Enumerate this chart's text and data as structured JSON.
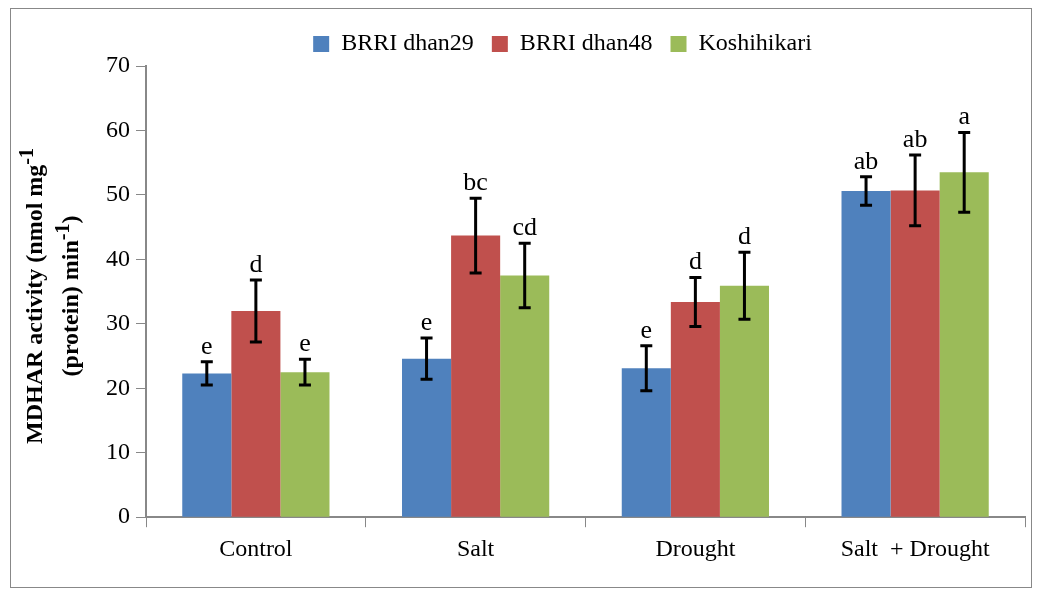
{
  "chart_data": {
    "type": "bar",
    "ylabel": "MDHAR activity (nmol mg$^{-1}$ (protein) min$^{-1}$)",
    "categories": [
      "Control",
      "Salt",
      "Drought",
      "Salt  + Drought"
    ],
    "series": [
      {
        "name": "BRRI dhan29",
        "color": "#4f81bd",
        "values": [
          22.3,
          24.6,
          23.1,
          50.6
        ],
        "errors": [
          1.8,
          3.2,
          3.5,
          2.2
        ]
      },
      {
        "name": "BRRI dhan48",
        "color": "#c0504d",
        "values": [
          32.0,
          43.7,
          33.4,
          50.7
        ],
        "errors": [
          4.8,
          5.8,
          3.8,
          5.5
        ]
      },
      {
        "name": "Koshihikari",
        "color": "#9bbb59",
        "values": [
          22.5,
          37.5,
          35.9,
          53.5
        ],
        "errors": [
          2.0,
          5.0,
          5.2,
          6.2
        ]
      }
    ],
    "ylim": [
      0,
      70
    ],
    "yticks": [
      0,
      10,
      20,
      30,
      40,
      50,
      60,
      70
    ],
    "grid": false,
    "legend": "top",
    "annotations": [
      "e",
      "d",
      "e",
      "e",
      "bc",
      "cd",
      "e",
      "d",
      "d",
      "ab",
      "ab",
      "a"
    ]
  }
}
